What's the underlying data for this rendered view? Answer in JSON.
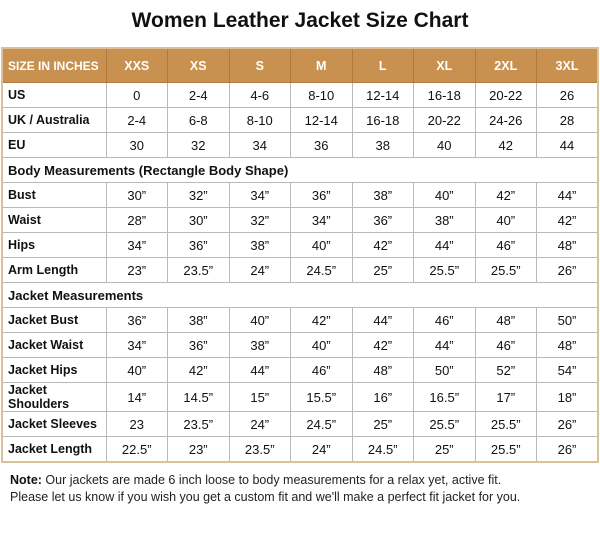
{
  "title": "Women Leather Jacket Size Chart",
  "colors": {
    "header_bg": "#c9914f",
    "border": "#dcc09a"
  },
  "table": {
    "header": [
      "SIZE IN INCHES",
      "XXS",
      "XS",
      "S",
      "M",
      "L",
      "XL",
      "2XL",
      "3XL"
    ],
    "rows": [
      {
        "label": "US",
        "values": [
          "0",
          "2-4",
          "4-6",
          "8-10",
          "12-14",
          "16-18",
          "20-22",
          "26"
        ]
      },
      {
        "label": "UK / Australia",
        "values": [
          "2-4",
          "6-8",
          "8-10",
          "12-14",
          "16-18",
          "20-22",
          "24-26",
          "28"
        ]
      },
      {
        "label": "EU",
        "values": [
          "30",
          "32",
          "34",
          "36",
          "38",
          "40",
          "42",
          "44"
        ]
      },
      {
        "section": "Body Measurements (Rectangle Body Shape)"
      },
      {
        "label": "Bust",
        "values": [
          "30”",
          "32”",
          "34”",
          "36”",
          "38”",
          "40”",
          "42”",
          "44”"
        ]
      },
      {
        "label": "Waist",
        "values": [
          "28”",
          "30”",
          "32”",
          "34”",
          "36”",
          "38”",
          "40”",
          "42”"
        ]
      },
      {
        "label": "Hips",
        "values": [
          "34”",
          "36”",
          "38”",
          "40”",
          "42”",
          "44”",
          "46”",
          "48”"
        ]
      },
      {
        "label": "Arm Length",
        "values": [
          "23”",
          "23.5”",
          "24”",
          "24.5”",
          "25”",
          "25.5”",
          "25.5”",
          "26”"
        ]
      },
      {
        "section": "Jacket Measurements"
      },
      {
        "label": "Jacket Bust",
        "values": [
          "36”",
          "38”",
          "40”",
          "42”",
          "44”",
          "46”",
          "48”",
          "50”"
        ]
      },
      {
        "label": "Jacket Waist",
        "values": [
          "34”",
          "36”",
          "38”",
          "40”",
          "42”",
          "44”",
          "46”",
          "48”"
        ]
      },
      {
        "label": "Jacket Hips",
        "values": [
          "40”",
          "42”",
          "44”",
          "46”",
          "48”",
          "50”",
          "52”",
          "54”"
        ]
      },
      {
        "label": "Jacket Shoulders",
        "values": [
          "14”",
          "14.5”",
          "15”",
          "15.5”",
          "16”",
          "16.5”",
          "17”",
          "18”"
        ]
      },
      {
        "label": "Jacket Sleeves",
        "values": [
          "23",
          "23.5”",
          "24”",
          "24.5”",
          "25”",
          "25.5”",
          "25.5”",
          "26”"
        ]
      },
      {
        "label": "Jacket Length",
        "values": [
          "22.5”",
          "23”",
          "23.5”",
          "24”",
          "24.5”",
          "25”",
          "25.5”",
          "26”"
        ]
      }
    ]
  },
  "note": {
    "label": "Note:",
    "line1": " Our jackets are made 6 inch loose to body measurements for a relax yet, active fit.",
    "line2": "Please let us know if you wish you get a custom fit and we'll make a perfect fit jacket for you."
  }
}
